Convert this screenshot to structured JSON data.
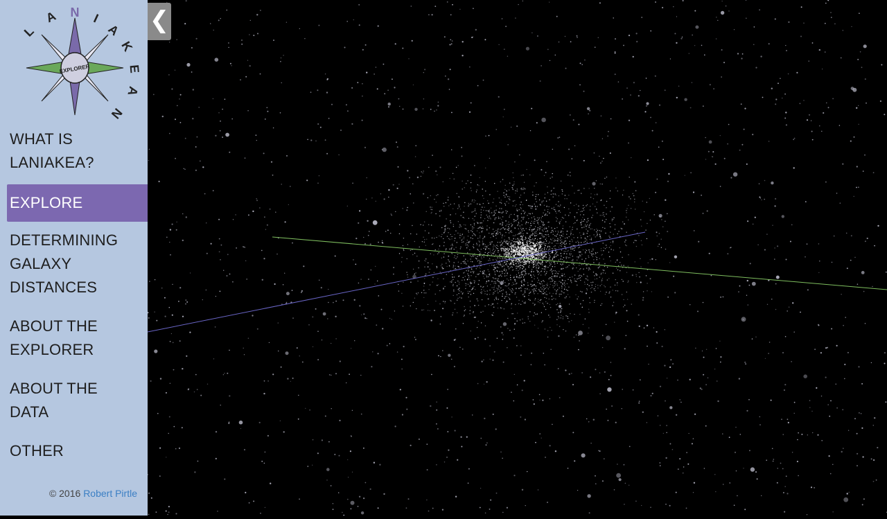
{
  "logo": {
    "ring_letters": [
      "L",
      "A",
      "N",
      "I",
      "A",
      "K",
      "E",
      "A",
      "N"
    ],
    "center_text": "EXPLORER"
  },
  "nav": {
    "items": [
      {
        "label_line1": "WHAT IS",
        "label_line2": "LANIAKEA?"
      },
      {
        "label_line1": "EXPLORE"
      },
      {
        "label_line1": "DETERMINING",
        "label_line2": "GALAXY",
        "label_line3": "DISTANCES"
      },
      {
        "label_line1": "ABOUT THE",
        "label_line2": "EXPLORER"
      },
      {
        "label_line1": "ABOUT THE",
        "label_line2": "DATA"
      },
      {
        "label_line1": "OTHER"
      }
    ],
    "active_index": 1
  },
  "footer": {
    "copyright": "© 2016",
    "author": "Robert Pirtle"
  },
  "collapse_button": {
    "glyph": "❮",
    "icon": "chevron-left-icon"
  },
  "colors": {
    "sidebar_bg": "#b5c7e0",
    "active_bg": "#7c68b0",
    "axis_green": "#7fbf5f",
    "axis_blue": "#6a66c8",
    "link": "#3b7fc4"
  }
}
